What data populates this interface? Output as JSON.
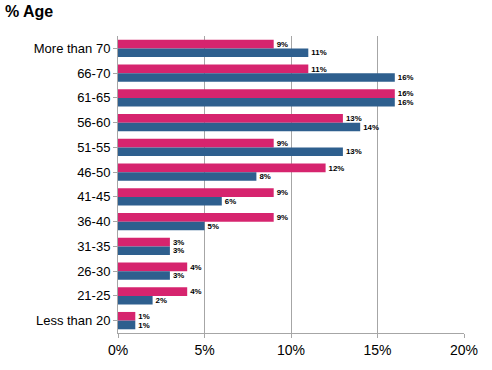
{
  "chart_data": {
    "type": "bar",
    "title": "% Age",
    "orientation": "horizontal",
    "categories": [
      "More than 70",
      "66-70",
      "61-65",
      "56-60",
      "51-55",
      "46-50",
      "41-45",
      "36-40",
      "31-35",
      "26-30",
      "21-25",
      "Less than 20"
    ],
    "series": [
      {
        "color": "#d6246e",
        "values": [
          9,
          11,
          16,
          13,
          9,
          12,
          9,
          9,
          3,
          4,
          4,
          1
        ],
        "value_labels": [
          "9%",
          "11%",
          "16%",
          "13%",
          "9%",
          "12%",
          "9%",
          "9%",
          "3%",
          "4%",
          "4%",
          "1%"
        ]
      },
      {
        "color": "#2e5f8e",
        "values": [
          11,
          16,
          16,
          14,
          13,
          8,
          6,
          5,
          3,
          3,
          2,
          1
        ],
        "value_labels": [
          "11%",
          "16%",
          "16%",
          "14%",
          "13%",
          "8%",
          "6%",
          "5%",
          "3%",
          "3%",
          "2%",
          "1%"
        ]
      }
    ],
    "xlim": [
      0,
      20
    ],
    "xticks": [
      {
        "value": 0,
        "label": "0%"
      },
      {
        "value": 5,
        "label": "5%"
      },
      {
        "value": 10,
        "label": "10%"
      },
      {
        "value": 15,
        "label": "15%"
      },
      {
        "value": 20,
        "label": "20%"
      }
    ],
    "grid": true,
    "data_labels": true
  }
}
